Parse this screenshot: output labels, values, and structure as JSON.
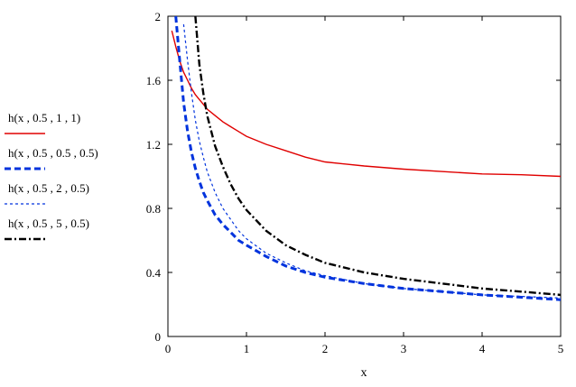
{
  "chart_data": {
    "type": "line",
    "xlabel": "x",
    "ylabel": "",
    "xlim": [
      0,
      5
    ],
    "ylim": [
      0,
      2
    ],
    "xticks": [
      "0",
      "1",
      "2",
      "3",
      "4",
      "5"
    ],
    "yticks": [
      "0",
      "0.4",
      "0.8",
      "1.2",
      "1.6",
      "2"
    ],
    "grid": false,
    "legend_position": "left",
    "x": [
      0.05,
      0.1,
      0.15,
      0.2,
      0.25,
      0.3,
      0.35,
      0.4,
      0.45,
      0.5,
      0.6,
      0.7,
      0.8,
      0.9,
      1.0,
      1.25,
      1.5,
      1.75,
      2.0,
      2.5,
      3.0,
      3.5,
      4.0,
      4.5,
      5.0
    ],
    "series": [
      {
        "name": "h(x , 0.5 , 1 , 1)",
        "color": "#e00000",
        "dash": "solid",
        "width": 1.4,
        "values": [
          1.91,
          1.81,
          1.72,
          1.65,
          1.6,
          1.55,
          1.51,
          1.48,
          1.45,
          1.42,
          1.38,
          1.34,
          1.31,
          1.28,
          1.25,
          1.2,
          1.16,
          1.12,
          1.09,
          1.065,
          1.045,
          1.03,
          1.015,
          1.01,
          1.0
        ]
      },
      {
        "name": "h(x , 0.5 , 0.5 , 0.5)",
        "color": "#0033dd",
        "dash": "7,4",
        "width": 3,
        "values": [
          null,
          2.0,
          1.72,
          1.46,
          1.28,
          1.15,
          1.05,
          0.97,
          0.9,
          0.85,
          0.76,
          0.7,
          0.65,
          0.6,
          0.57,
          0.5,
          0.44,
          0.4,
          0.37,
          0.33,
          0.3,
          0.28,
          0.26,
          0.245,
          0.23
        ]
      },
      {
        "name": "h(x , 0.5 , 2 , 0.5)",
        "color": "#0033dd",
        "dash": "3,3",
        "width": 1.2,
        "values": [
          null,
          null,
          null,
          1.95,
          1.72,
          1.52,
          1.35,
          1.22,
          1.12,
          1.03,
          0.9,
          0.8,
          0.73,
          0.66,
          0.61,
          0.52,
          0.46,
          0.41,
          0.38,
          0.33,
          0.3,
          0.28,
          0.26,
          0.25,
          0.24
        ]
      },
      {
        "name": "h(x , 0.5 , 5 , 0.5)",
        "color": "#000000",
        "dash": "8,3,2,3",
        "width": 2.4,
        "values": [
          null,
          null,
          null,
          null,
          null,
          null,
          2.0,
          1.7,
          1.52,
          1.38,
          1.19,
          1.06,
          0.95,
          0.86,
          0.79,
          0.66,
          0.57,
          0.51,
          0.46,
          0.4,
          0.36,
          0.33,
          0.3,
          0.28,
          0.26
        ]
      }
    ]
  }
}
